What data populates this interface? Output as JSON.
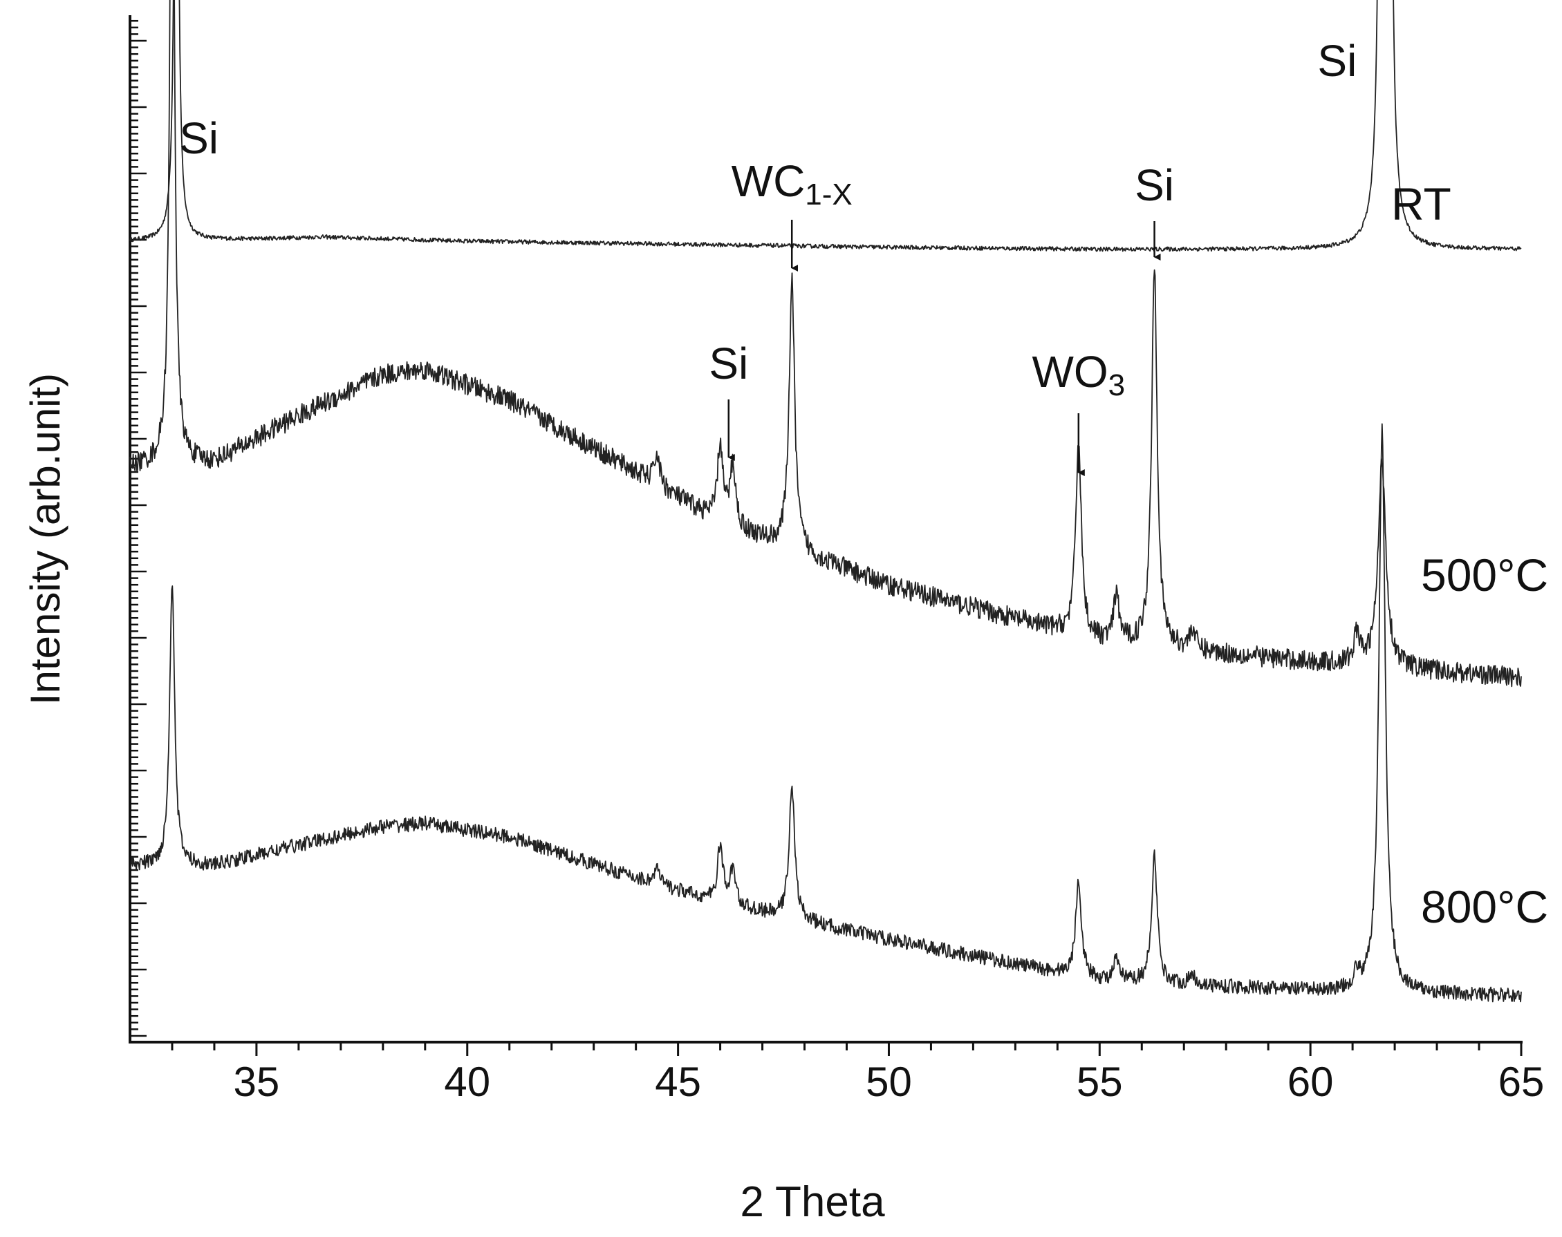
{
  "chart_data": {
    "type": "line",
    "title": "",
    "xlabel": "2 Theta",
    "ylabel": "Intensity (arb.unit)",
    "xlim": [
      32,
      65
    ],
    "x_ticks": [
      35,
      40,
      45,
      50,
      55,
      60,
      65
    ],
    "x_tick_labels": [
      "35",
      "40",
      "45",
      "50",
      "55",
      "60",
      "65"
    ],
    "series": [
      {
        "name": "RT",
        "baseline": [
          [
            32,
            0.78
          ],
          [
            35,
            0.782
          ],
          [
            36.5,
            0.784
          ],
          [
            40,
            0.78
          ],
          [
            50,
            0.774
          ],
          [
            55,
            0.772
          ],
          [
            60,
            0.772
          ],
          [
            65,
            0.772
          ]
        ],
        "peaks": [
          [
            33.1,
            0.72,
            0.05
          ],
          [
            61.7,
            1.3,
            0.05
          ],
          [
            61.85,
            1.3,
            0.05
          ]
        ],
        "noise": 0.002,
        "label": "RT"
      },
      {
        "name": "500°C",
        "baseline": [
          [
            32,
            0.56
          ],
          [
            34,
            0.565
          ],
          [
            36,
            0.61
          ],
          [
            38,
            0.65
          ],
          [
            39,
            0.655
          ],
          [
            41,
            0.625
          ],
          [
            44,
            0.555
          ],
          [
            46,
            0.505
          ],
          [
            50,
            0.445
          ],
          [
            55,
            0.39
          ],
          [
            60,
            0.37
          ],
          [
            65,
            0.355
          ]
        ],
        "peaks": [
          [
            33.0,
            0.8,
            0.06
          ],
          [
            44.5,
            0.03,
            0.08
          ],
          [
            46.0,
            0.075,
            0.08
          ],
          [
            46.3,
            0.06,
            0.08
          ],
          [
            47.7,
            0.26,
            0.08
          ],
          [
            54.5,
            0.19,
            0.08
          ],
          [
            55.4,
            0.045,
            0.08
          ],
          [
            56.3,
            0.37,
            0.08
          ],
          [
            57.2,
            0.02,
            0.08
          ],
          [
            61.1,
            0.03,
            0.08
          ],
          [
            61.7,
            0.2,
            0.11
          ]
        ],
        "noise": 0.01,
        "label": "500°C"
      },
      {
        "name": "800°C",
        "baseline": [
          [
            32,
            0.172
          ],
          [
            34,
            0.172
          ],
          [
            36,
            0.192
          ],
          [
            38,
            0.21
          ],
          [
            39,
            0.213
          ],
          [
            41,
            0.2
          ],
          [
            44,
            0.16
          ],
          [
            46,
            0.135
          ],
          [
            50,
            0.1
          ],
          [
            55,
            0.06
          ],
          [
            60,
            0.05
          ],
          [
            65,
            0.045
          ]
        ],
        "peaks": [
          [
            33.0,
            0.28,
            0.07
          ],
          [
            44.5,
            0.015,
            0.08
          ],
          [
            46.0,
            0.055,
            0.08
          ],
          [
            46.3,
            0.035,
            0.08
          ],
          [
            47.7,
            0.13,
            0.08
          ],
          [
            54.5,
            0.095,
            0.08
          ],
          [
            55.4,
            0.02,
            0.08
          ],
          [
            56.3,
            0.125,
            0.08
          ],
          [
            57.2,
            0.01,
            0.08
          ],
          [
            61.1,
            0.015,
            0.08
          ],
          [
            61.7,
            0.55,
            0.09
          ]
        ],
        "noise": 0.007,
        "label": "800°C"
      }
    ],
    "annotations": [
      {
        "text": "Si",
        "x": 33.1,
        "arrow": false
      },
      {
        "text": "WC",
        "sub": "1-X",
        "x": 47.7,
        "arrow": true
      },
      {
        "text": "Si",
        "x": 46.2,
        "arrow": true
      },
      {
        "text": "WO",
        "sub": "3",
        "x": 54.5,
        "arrow": true
      },
      {
        "text": "Si",
        "x": 56.3,
        "arrow": true
      },
      {
        "text": "Si",
        "x": 61.2,
        "arrow": false
      }
    ]
  }
}
